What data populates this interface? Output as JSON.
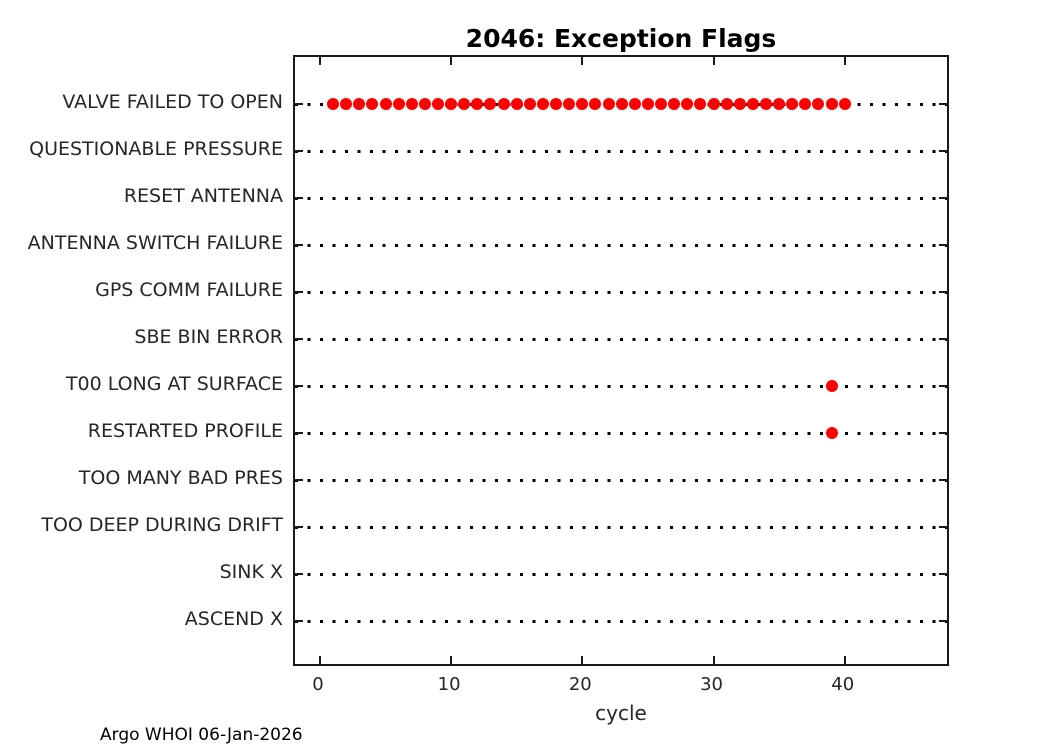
{
  "figure": {
    "title": "2046: Exception Flags",
    "caption": "Argo WHOI 06-Jan-2026"
  },
  "chart_data": {
    "type": "scatter",
    "title": "2046: Exception Flags",
    "xlabel": "cycle",
    "ylabel": "",
    "caption": "Argo WHOI 06-Jan-2026",
    "x_ticks": [
      0,
      10,
      20,
      30,
      40
    ],
    "xlim": [
      -1.9,
      48.1
    ],
    "grid": "dotted black horizontal baseline per category, box on, ticks inward on all four sides",
    "legend": "none",
    "categories": [
      "VALVE FAILED TO OPEN",
      "QUESTIONABLE PRESSURE",
      "RESET ANTENNA",
      "ANTENNA SWITCH FAILURE",
      "GPS COMM FAILURE",
      "SBE BIN ERROR",
      "T00 LONG AT SURFACE",
      "RESTARTED PROFILE",
      "TOO MANY BAD PRES",
      "TOO DEEP DURING DRIFT",
      "SINK X",
      "ASCEND X"
    ],
    "series": [
      {
        "name": "VALVE FAILED TO OPEN",
        "x": [
          1,
          2,
          3,
          4,
          5,
          6,
          7,
          8,
          9,
          10,
          11,
          12,
          13,
          14,
          15,
          16,
          17,
          18,
          19,
          20,
          21,
          22,
          23,
          24,
          25,
          26,
          27,
          28,
          29,
          30,
          31,
          32,
          33,
          34,
          35,
          36,
          37,
          38,
          39,
          40
        ]
      },
      {
        "name": "T00 LONG AT SURFACE",
        "x": [
          39
        ]
      },
      {
        "name": "RESTARTED PROFILE",
        "x": [
          39
        ]
      }
    ],
    "colors": {
      "marker": "#ff0000",
      "axis": "#1a1a1a",
      "text": "#262626",
      "title": "#000000",
      "dotted_line": "#000000",
      "background": "#ffffff"
    }
  }
}
